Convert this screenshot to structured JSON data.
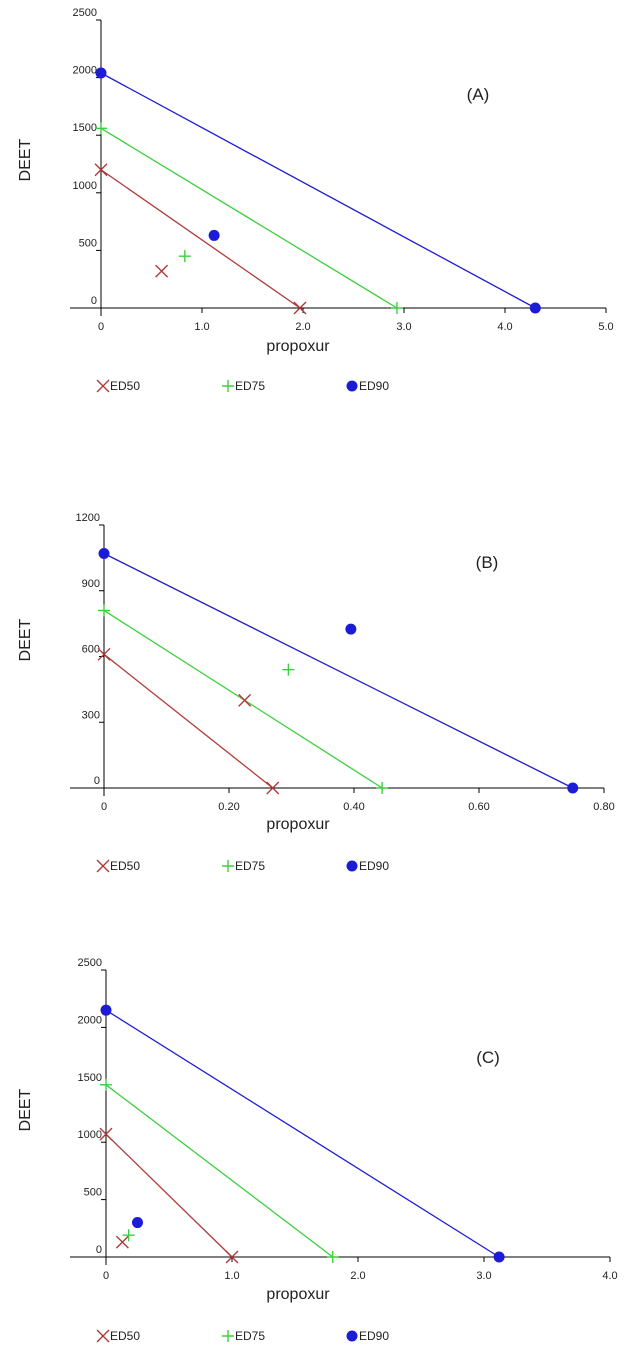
{
  "colors": {
    "ed50": "#b03a3a",
    "ed75": "#3ecf3e",
    "ed90": "#1c1cd6",
    "axis": "#000000"
  },
  "chart_data": [
    {
      "type": "scatter",
      "panel_label": "(A)",
      "xlabel": "propoxur",
      "ylabel": "DEET",
      "xlim": [
        0,
        5.0
      ],
      "ylim": [
        0,
        2500
      ],
      "x_ticks": [
        "0",
        "1.0",
        "2.0",
        "3.0",
        "4.0",
        "5.0"
      ],
      "y_ticks": [
        "0",
        "500",
        "1000",
        "1500",
        "2000",
        "2500"
      ],
      "legend": [
        "ED50",
        "ED75",
        "ED90"
      ],
      "isobolograms": [
        {
          "name": "ED50",
          "from": [
            0,
            1200
          ],
          "to": [
            1.97,
            0
          ]
        },
        {
          "name": "ED75",
          "from": [
            0,
            1560
          ],
          "to": [
            2.93,
            0
          ]
        },
        {
          "name": "ED90",
          "from": [
            0,
            2040
          ],
          "to": [
            4.3,
            0
          ]
        }
      ],
      "points": [
        {
          "name": "ED50",
          "x": 0.6,
          "y": 320
        },
        {
          "name": "ED75",
          "x": 0.83,
          "y": 450
        },
        {
          "name": "ED90",
          "x": 1.12,
          "y": 630
        }
      ]
    },
    {
      "type": "scatter",
      "panel_label": "(B)",
      "xlabel": "propoxur",
      "ylabel": "DEET",
      "xlim": [
        0,
        0.8
      ],
      "ylim": [
        0,
        1200
      ],
      "x_ticks": [
        "0",
        "0.20",
        "0.40",
        "0.60",
        "0.80"
      ],
      "y_ticks": [
        "0",
        "300",
        "600",
        "900",
        "1200"
      ],
      "legend": [
        "ED50",
        "ED75",
        "ED90"
      ],
      "isobolograms": [
        {
          "name": "ED50",
          "from": [
            0,
            610
          ],
          "to": [
            0.27,
            0
          ]
        },
        {
          "name": "ED75",
          "from": [
            0,
            810
          ],
          "to": [
            0.445,
            0
          ]
        },
        {
          "name": "ED90",
          "from": [
            0,
            1070
          ],
          "to": [
            0.75,
            0
          ]
        }
      ],
      "points": [
        {
          "name": "ED50",
          "x": 0.225,
          "y": 400
        },
        {
          "name": "ED75",
          "x": 0.295,
          "y": 540
        },
        {
          "name": "ED90",
          "x": 0.395,
          "y": 725
        }
      ]
    },
    {
      "type": "scatter",
      "panel_label": "(C)",
      "xlabel": "propoxur",
      "ylabel": "DEET",
      "xlim": [
        0,
        4.0
      ],
      "ylim": [
        0,
        2500
      ],
      "x_ticks": [
        "0",
        "1.0",
        "2.0",
        "3.0",
        "4.0"
      ],
      "y_ticks": [
        "0",
        "500",
        "1000",
        "1500",
        "2000",
        "2500"
      ],
      "legend": [
        "ED50",
        "ED75",
        "ED90"
      ],
      "isobolograms": [
        {
          "name": "ED50",
          "from": [
            0,
            1070
          ],
          "to": [
            1.0,
            0
          ]
        },
        {
          "name": "ED75",
          "from": [
            0,
            1500
          ],
          "to": [
            1.8,
            0
          ]
        },
        {
          "name": "ED90",
          "from": [
            0,
            2150
          ],
          "to": [
            3.12,
            0
          ]
        }
      ],
      "points": [
        {
          "name": "ED50",
          "x": 0.13,
          "y": 130
        },
        {
          "name": "ED75",
          "x": 0.18,
          "y": 190
        },
        {
          "name": "ED90",
          "x": 0.25,
          "y": 300
        }
      ]
    }
  ]
}
